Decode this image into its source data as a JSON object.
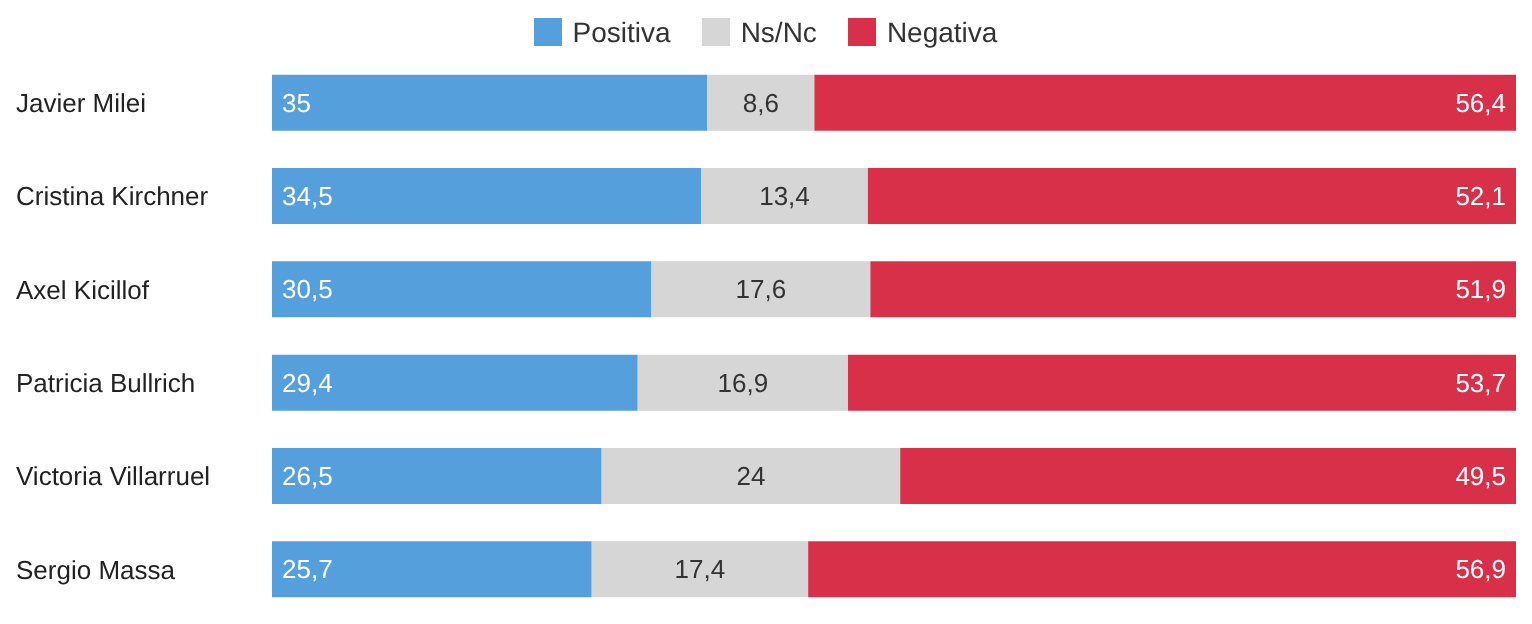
{
  "chart_data": {
    "type": "bar",
    "orientation": "horizontal",
    "stacked": true,
    "legend": "top",
    "tick_labels": "y",
    "xlim": [
      0,
      100
    ],
    "categories": [
      "Javier Milei",
      "Cristina Kirchner",
      "Axel Kicillof",
      "Patricia Bullrich",
      "Victoria Villarruel",
      "Sergio Massa"
    ],
    "series": [
      {
        "name": "Positiva",
        "color": "#559fdc",
        "values": [
          35,
          34.5,
          30.5,
          29.4,
          26.5,
          25.7
        ],
        "value_labels": [
          "35",
          "34,5",
          "30,5",
          "29,4",
          "26,5",
          "25,7"
        ]
      },
      {
        "name": "Ns/Nc",
        "color": "#d6d6d6",
        "values": [
          8.6,
          13.4,
          17.6,
          16.9,
          24,
          17.4
        ],
        "value_labels": [
          "8,6",
          "13,4",
          "17,6",
          "16,9",
          "24",
          "17,4"
        ]
      },
      {
        "name": "Negativa",
        "color": "#d9304a",
        "values": [
          56.4,
          52.1,
          51.9,
          53.7,
          49.5,
          56.9
        ],
        "value_labels": [
          "56,4",
          "52,1",
          "51,9",
          "53,7",
          "49,5",
          "56,9"
        ]
      }
    ]
  }
}
